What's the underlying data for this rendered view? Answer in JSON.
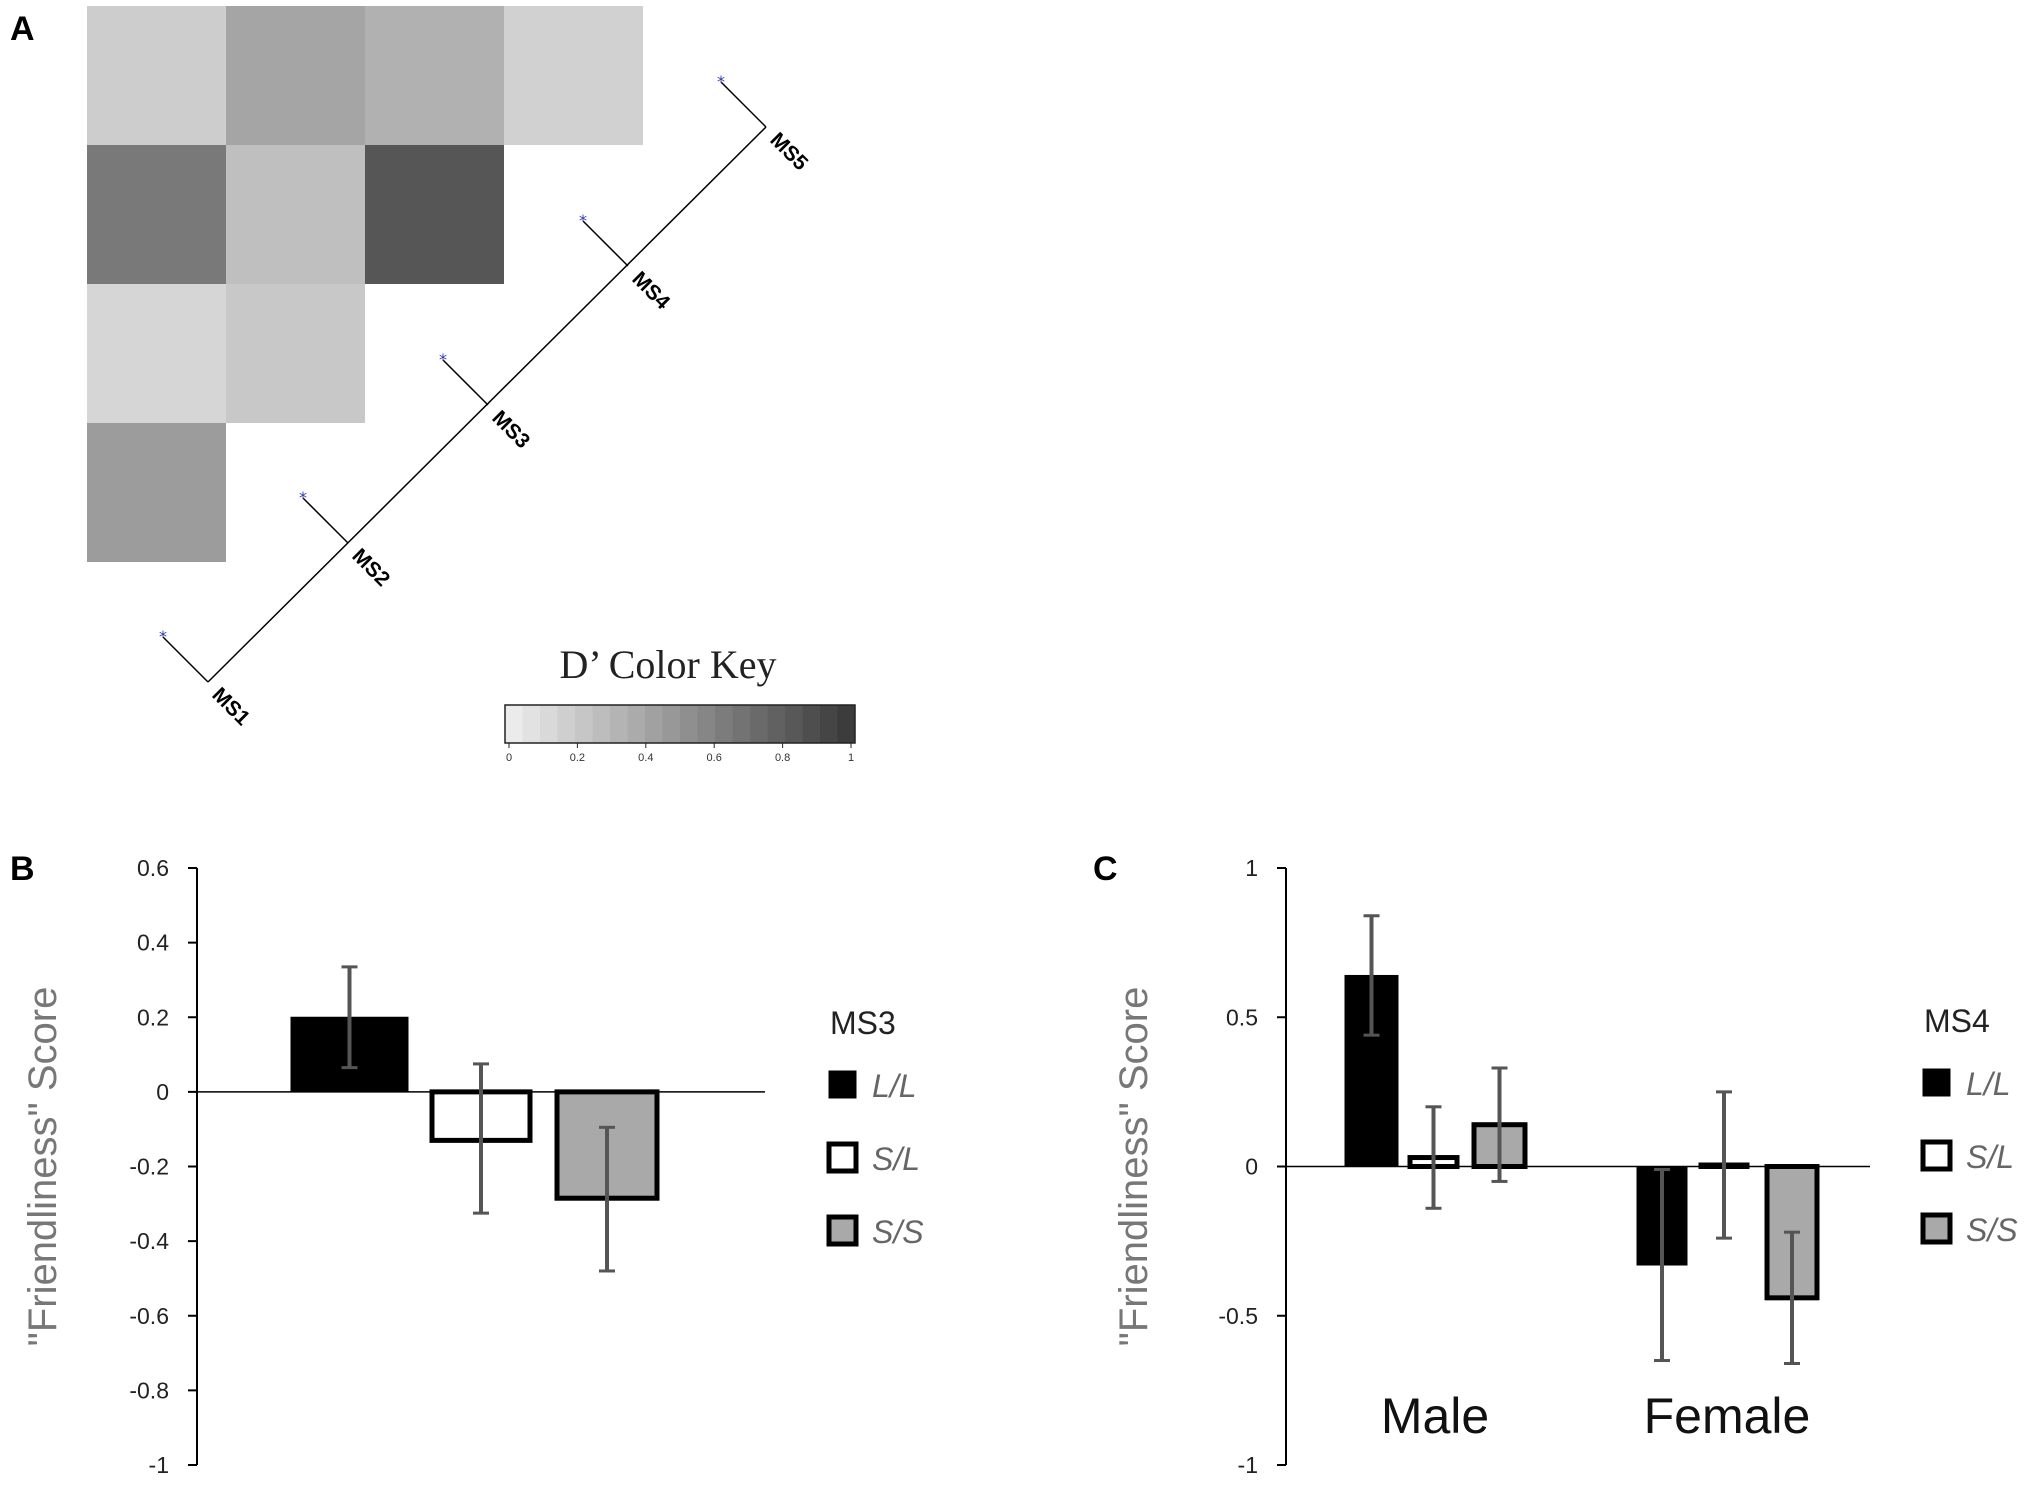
{
  "panel_a": {
    "letter": "A",
    "heatmap_ld": [
      {
        "pair": "MS1-MS2",
        "d_prime": 0.45
      },
      {
        "pair": "MS1-MS3",
        "d_prime": 0.12
      },
      {
        "pair": "MS1-MS4",
        "d_prime": 0.65
      },
      {
        "pair": "MS1-MS5",
        "d_prime": 0.17
      },
      {
        "pair": "MS2-MS3",
        "d_prime": 0.2
      },
      {
        "pair": "MS2-MS4",
        "d_prime": 0.25
      },
      {
        "pair": "MS2-MS5",
        "d_prime": 0.4
      },
      {
        "pair": "MS3-MS4",
        "d_prime": 0.85
      },
      {
        "pair": "MS3-MS5",
        "d_prime": 0.33
      },
      {
        "pair": "MS4-MS5",
        "d_prime": 0.15
      }
    ],
    "markers": [
      "MS1",
      "MS2",
      "MS3",
      "MS4",
      "MS5"
    ],
    "color_key": {
      "title": "D’ Color Key",
      "ticks": [
        "0",
        "0.2",
        "0.4",
        "0.6",
        "0.8",
        "1"
      ],
      "color_low": "#ebebeb",
      "color_high": "#3c3c3c"
    }
  },
  "chart_data": [
    {
      "type": "bar",
      "panel": "B",
      "ylabel": "\"Friendliness\" Score",
      "ylim": [
        -1,
        0.6
      ],
      "yticks": [
        "0.6",
        "0.4",
        "0.2",
        "0",
        "-0.2",
        "-0.4",
        "-0.6",
        "-0.8",
        "-1"
      ],
      "ytick_values": [
        0.6,
        0.4,
        0.2,
        0,
        -0.2,
        -0.4,
        -0.6,
        -0.8,
        -1
      ],
      "legend_title": "MS3",
      "categories": [
        ""
      ],
      "series": [
        {
          "name": "L/L",
          "color": "#000000",
          "values": [
            0.2
          ],
          "err_low": [
            0.065
          ],
          "err_high": [
            0.335
          ]
        },
        {
          "name": "S/L",
          "color": "#ffffff",
          "values": [
            -0.13
          ],
          "err_low": [
            -0.325
          ],
          "err_high": [
            0.075
          ]
        },
        {
          "name": "S/S",
          "color": "#a9a9a9",
          "values": [
            -0.285
          ],
          "err_low": [
            -0.48
          ],
          "err_high": [
            -0.095
          ]
        }
      ]
    },
    {
      "type": "bar",
      "panel": "C",
      "ylabel": "\"Friendliness\" Score",
      "ylim": [
        -1,
        1
      ],
      "yticks": [
        "1",
        "0.5",
        "0",
        "-0.5",
        "-1"
      ],
      "ytick_values": [
        1,
        0.5,
        0,
        -0.5,
        -1
      ],
      "legend_title": "MS4",
      "categories": [
        "Male",
        "Female"
      ],
      "series": [
        {
          "name": "L/L",
          "color": "#000000",
          "values": [
            0.64,
            -0.33
          ],
          "err_low": [
            0.44,
            -0.65
          ],
          "err_high": [
            0.84,
            -0.01
          ]
        },
        {
          "name": "S/L",
          "color": "#ffffff",
          "values": [
            0.03,
            0.005
          ],
          "err_low": [
            -0.14,
            -0.24
          ],
          "err_high": [
            0.2,
            0.25
          ]
        },
        {
          "name": "S/S",
          "color": "#a9a9a9",
          "values": [
            0.14,
            -0.44
          ],
          "err_low": [
            -0.05,
            -0.66
          ],
          "err_high": [
            0.33,
            -0.22
          ]
        }
      ]
    }
  ]
}
